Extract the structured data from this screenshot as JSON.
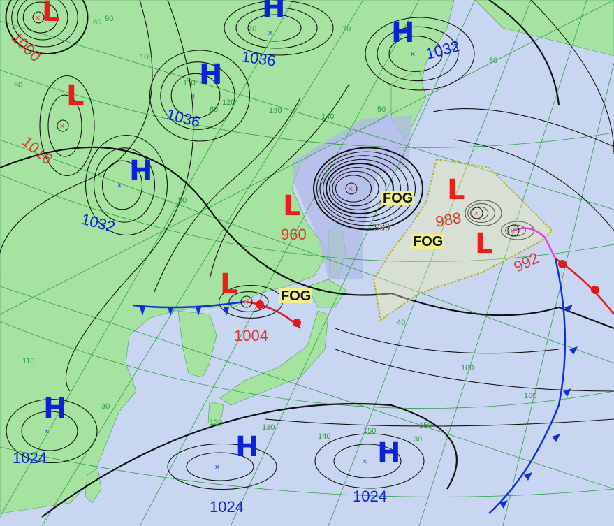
{
  "map": {
    "colors": {
      "sea": "#c9d6f2",
      "land": "#a6e3a0",
      "isobar": "#111111",
      "grid": "#2aa040",
      "high": "#0a22d8",
      "low": "#ee1c1c",
      "low_value": "#d83a2a",
      "fog_bg": "#f2f08a",
      "cold_front": "#1030e0",
      "warm_front": "#e01818",
      "occluded_front": "#e040e0",
      "fog_boundary": "#b8b020"
    },
    "pressure_systems": [
      {
        "type": "L",
        "value": "1000"
      },
      {
        "type": "L",
        "value": "1016"
      },
      {
        "type": "H",
        "value": "1036"
      },
      {
        "type": "H",
        "value": "1036"
      },
      {
        "type": "H",
        "value": "1032"
      },
      {
        "type": "H",
        "value": "1032"
      },
      {
        "type": "L",
        "value": "960"
      },
      {
        "type": "L",
        "value": "988"
      },
      {
        "type": "L",
        "value": "992"
      },
      {
        "type": "L",
        "value": "1004"
      },
      {
        "type": "H",
        "value": "1024"
      },
      {
        "type": "H",
        "value": "1024"
      },
      {
        "type": "H",
        "value": "1024"
      }
    ],
    "fog_labels": [
      "FOG",
      "FOG",
      "FOG"
    ],
    "isobar_labels": [
      "980"
    ],
    "grid_labels": [
      "80",
      "90",
      "100",
      "110",
      "120",
      "130",
      "140",
      "150",
      "160",
      "70",
      "60",
      "50",
      "50",
      "60",
      "70",
      "50",
      "40",
      "30",
      "30",
      "110",
      "120",
      "130",
      "140",
      "150",
      "160"
    ]
  }
}
